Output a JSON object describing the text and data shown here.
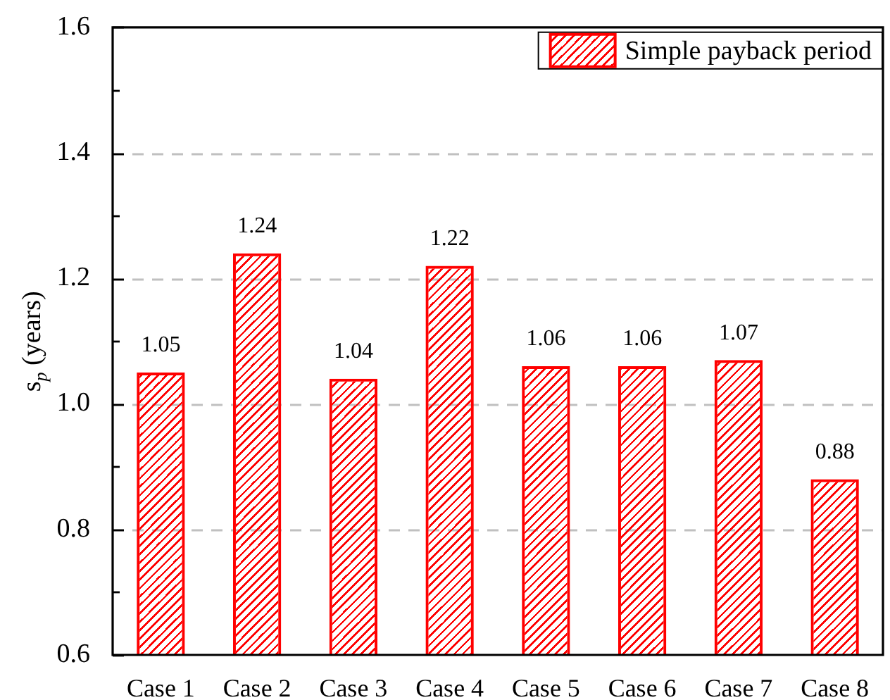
{
  "chart_data": {
    "type": "bar",
    "ylabel": "s$_{p}$ (years)",
    "categories": [
      "Case 1",
      "Case 2",
      "Case 3",
      "Case 4",
      "Case 5",
      "Case 6",
      "Case 7",
      "Case 8"
    ],
    "series": [
      {
        "name": "Simple payback period",
        "color": "#ff0000",
        "values": [
          1.05,
          1.24,
          1.04,
          1.22,
          1.06,
          1.06,
          1.07,
          0.88
        ]
      }
    ],
    "ylim": [
      0.6,
      1.6
    ],
    "yticks": [
      0.6,
      {
        "value": 0.7,
        "label": null
      },
      0.8,
      {
        "value": 0.9,
        "label": null
      },
      {
        "value": 1,
        "label": "1.0"
      },
      {
        "value": 1.1,
        "label": null
      },
      1.2,
      {
        "value": 1.3,
        "label": null
      },
      1.4,
      {
        "value": 1.5,
        "label": null
      },
      1.6
    ],
    "grid": "y",
    "legend": "top right",
    "data_labels": true
  }
}
